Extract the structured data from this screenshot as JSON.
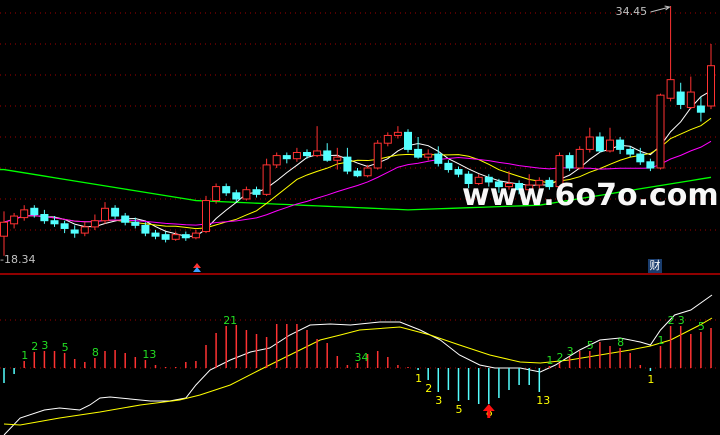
{
  "chart_data": [
    {
      "type": "candlestick",
      "ohlc": [
        [
          19.6,
          21.2,
          18.34,
          20.5
        ],
        [
          20.4,
          21.1,
          20.1,
          20.9
        ],
        [
          20.8,
          21.6,
          20.6,
          21.3
        ],
        [
          21.4,
          21.6,
          20.8,
          21.0
        ],
        [
          21.0,
          21.3,
          20.4,
          20.6
        ],
        [
          20.6,
          20.9,
          20.2,
          20.4
        ],
        [
          20.4,
          20.6,
          19.8,
          20.1
        ],
        [
          20.0,
          20.3,
          19.5,
          19.8
        ],
        [
          19.8,
          20.5,
          19.6,
          20.2
        ],
        [
          20.2,
          21.0,
          20.0,
          20.6
        ],
        [
          20.6,
          21.8,
          20.4,
          21.4
        ],
        [
          21.4,
          21.6,
          20.7,
          20.9
        ],
        [
          20.9,
          21.1,
          20.3,
          20.5
        ],
        [
          20.5,
          20.8,
          20.1,
          20.3
        ],
        [
          20.3,
          20.5,
          19.6,
          19.8
        ],
        [
          19.8,
          20.0,
          19.4,
          19.6
        ],
        [
          19.7,
          19.9,
          19.2,
          19.4
        ],
        [
          19.4,
          19.9,
          19.3,
          19.7
        ],
        [
          19.7,
          19.9,
          19.3,
          19.5
        ],
        [
          19.5,
          20.0,
          19.4,
          19.8
        ],
        [
          19.9,
          22.2,
          19.8,
          21.9
        ],
        [
          21.9,
          23.0,
          21.7,
          22.8
        ],
        [
          22.8,
          23.0,
          22.2,
          22.4
        ],
        [
          22.4,
          22.6,
          21.8,
          22.0
        ],
        [
          22.0,
          22.8,
          21.9,
          22.6
        ],
        [
          22.6,
          22.8,
          22.1,
          22.3
        ],
        [
          22.3,
          24.6,
          22.2,
          24.2
        ],
        [
          24.2,
          25.0,
          24.0,
          24.8
        ],
        [
          24.8,
          25.0,
          24.3,
          24.6
        ],
        [
          24.6,
          25.3,
          24.4,
          25.0
        ],
        [
          25.0,
          25.2,
          24.6,
          24.8
        ],
        [
          24.8,
          26.7,
          24.7,
          25.1
        ],
        [
          25.1,
          25.6,
          24.4,
          24.5
        ],
        [
          24.5,
          25.3,
          23.9,
          24.7
        ],
        [
          24.7,
          25.3,
          23.6,
          23.8
        ],
        [
          23.8,
          24.0,
          23.4,
          23.5
        ],
        [
          23.5,
          24.2,
          23.4,
          24.0
        ],
        [
          24.0,
          25.8,
          23.9,
          25.6
        ],
        [
          25.6,
          26.3,
          25.4,
          26.1
        ],
        [
          26.1,
          26.7,
          25.9,
          26.3
        ],
        [
          26.3,
          26.5,
          25.0,
          25.2
        ],
        [
          25.2,
          26.0,
          24.6,
          24.7
        ],
        [
          24.7,
          25.2,
          24.5,
          24.9
        ],
        [
          24.9,
          25.4,
          24.1,
          24.3
        ],
        [
          24.3,
          24.5,
          23.7,
          23.9
        ],
        [
          23.9,
          24.1,
          23.4,
          23.6
        ],
        [
          23.6,
          23.8,
          22.7,
          23.0
        ],
        [
          23.0,
          23.6,
          22.9,
          23.4
        ],
        [
          23.4,
          23.6,
          22.8,
          23.1
        ],
        [
          23.1,
          23.3,
          22.4,
          22.8
        ],
        [
          22.8,
          23.8,
          22.6,
          23.0
        ],
        [
          23.0,
          23.2,
          22.3,
          22.6
        ],
        [
          22.6,
          23.6,
          22.5,
          22.9
        ],
        [
          22.9,
          23.4,
          22.7,
          23.2
        ],
        [
          23.2,
          23.4,
          22.6,
          22.8
        ],
        [
          22.8,
          25.0,
          22.7,
          24.8
        ],
        [
          24.8,
          25.0,
          23.8,
          24.0
        ],
        [
          24.0,
          25.4,
          23.9,
          25.2
        ],
        [
          25.2,
          26.6,
          25.0,
          26.0
        ],
        [
          26.0,
          26.3,
          25.0,
          25.1
        ],
        [
          25.1,
          26.6,
          25.0,
          25.8
        ],
        [
          25.8,
          26.0,
          24.9,
          25.2
        ],
        [
          25.2,
          25.4,
          24.7,
          24.9
        ],
        [
          24.9,
          25.3,
          24.2,
          24.4
        ],
        [
          24.4,
          24.6,
          23.8,
          24.0
        ],
        [
          24.0,
          28.8,
          23.9,
          28.7
        ],
        [
          28.5,
          34.45,
          28.3,
          29.7
        ],
        [
          28.9,
          29.5,
          27.8,
          28.1
        ],
        [
          27.9,
          29.9,
          27.8,
          28.9
        ],
        [
          28.0,
          28.6,
          27.0,
          27.6
        ],
        [
          28.0,
          32.0,
          27.8,
          30.6
        ]
      ],
      "moving_averages": [
        {
          "period": 5,
          "color": "#ffffff"
        },
        {
          "period": 10,
          "color": "#ffff00"
        },
        {
          "period": 20,
          "color": "#ff00ff"
        }
      ],
      "long_ma": {
        "color": "#00ff00",
        "points": [
          [
            0,
            23.9
          ],
          [
            19,
            21.9
          ],
          [
            40,
            21.3
          ],
          [
            53,
            21.6
          ],
          [
            70,
            23.4
          ]
        ]
      },
      "ylim": [
        18.34,
        34.45
      ],
      "gridlines": [
        34,
        32,
        30,
        28,
        26,
        24,
        22,
        20
      ],
      "high_label": "34.45",
      "low_label": "-18.34",
      "up_color": "#ff3232",
      "down_color": "#54ffff"
    },
    {
      "type": "bar",
      "values": [
        -15,
        -6,
        7,
        16,
        17,
        17,
        15,
        9,
        6,
        10,
        17,
        18,
        15,
        11,
        8,
        3,
        1,
        1,
        6,
        7,
        23,
        35,
        42,
        43,
        38,
        34,
        31,
        44,
        44,
        44,
        38,
        29,
        25,
        12,
        3,
        5,
        14,
        17,
        11,
        3,
        1,
        -2,
        -12,
        -24,
        -22,
        -33,
        -32,
        -36,
        -36,
        -30,
        -22,
        -17,
        -17,
        -24,
        2,
        5,
        11,
        17,
        17,
        26,
        22,
        20,
        15,
        3,
        -3,
        22,
        42,
        42,
        34,
        36,
        40
      ],
      "lines": [
        {
          "color": "#ffffff",
          "points": [
            [
              0,
              -67
            ],
            [
              1.6,
              -50
            ],
            [
              4,
              -42
            ],
            [
              5.5,
              -40
            ],
            [
              7.5,
              -42
            ],
            [
              8.5,
              -37
            ],
            [
              9.5,
              -30
            ],
            [
              10.5,
              -29
            ],
            [
              12.5,
              -31
            ],
            [
              14.5,
              -33
            ],
            [
              16.4,
              -33
            ],
            [
              18,
              -30
            ],
            [
              19,
              -17
            ],
            [
              20.4,
              -2
            ],
            [
              22.4,
              8
            ],
            [
              24.4,
              16
            ],
            [
              26.3,
              20
            ],
            [
              28.3,
              33
            ],
            [
              30.3,
              43
            ],
            [
              32.3,
              44
            ],
            [
              34.3,
              43
            ],
            [
              37.2,
              46
            ],
            [
              39.2,
              46
            ],
            [
              41.2,
              38
            ],
            [
              43.2,
              28
            ],
            [
              45.1,
              13
            ],
            [
              47.1,
              3
            ],
            [
              48.6,
              0
            ],
            [
              51.1,
              0
            ],
            [
              53.1,
              -4
            ],
            [
              54.6,
              3
            ],
            [
              57,
              18
            ],
            [
              59,
              28
            ],
            [
              61,
              30
            ],
            [
              63,
              26
            ],
            [
              64,
              23
            ],
            [
              65,
              38
            ],
            [
              66.4,
              53
            ],
            [
              68,
              58
            ],
            [
              70.1,
              73
            ]
          ]
        },
        {
          "color": "#ffff00",
          "points": [
            [
              0,
              -56
            ],
            [
              1.6,
              -57
            ],
            [
              5.5,
              -50
            ],
            [
              9.5,
              -44
            ],
            [
              13.5,
              -37
            ],
            [
              17.4,
              -32
            ],
            [
              19.4,
              -27
            ],
            [
              22.4,
              -17
            ],
            [
              25.3,
              -2
            ],
            [
              28.3,
              13
            ],
            [
              31.3,
              28
            ],
            [
              33.3,
              33
            ],
            [
              35.2,
              38
            ],
            [
              39.2,
              41
            ],
            [
              42.2,
              33
            ],
            [
              45.1,
              23
            ],
            [
              48.1,
              13
            ],
            [
              51.1,
              6
            ],
            [
              53.1,
              5
            ],
            [
              56,
              8
            ],
            [
              59,
              13
            ],
            [
              62,
              18
            ],
            [
              64,
              22
            ],
            [
              66,
              28
            ],
            [
              68.9,
              43
            ],
            [
              70.1,
              50
            ]
          ]
        }
      ],
      "count_labels": [
        {
          "i": 2,
          "text": "1"
        },
        {
          "i": 3,
          "text": "2"
        },
        {
          "i": 4,
          "text": "3"
        },
        {
          "i": 6,
          "text": "5"
        },
        {
          "i": 9,
          "text": "8"
        },
        {
          "i": 14,
          "text": "13"
        },
        {
          "i": 22,
          "text": "21"
        },
        {
          "i": 35,
          "text": "34"
        },
        {
          "i": 41,
          "text": "1"
        },
        {
          "i": 42,
          "text": "2"
        },
        {
          "i": 43,
          "text": "3"
        },
        {
          "i": 45,
          "text": "5"
        },
        {
          "i": 48,
          "text": "8"
        },
        {
          "i": 53,
          "text": "13"
        },
        {
          "i": 54,
          "text": "1"
        },
        {
          "i": 55,
          "text": "2"
        },
        {
          "i": 56,
          "text": "3"
        },
        {
          "i": 58,
          "text": "5"
        },
        {
          "i": 61,
          "text": "8"
        },
        {
          "i": 64,
          "text": "1"
        },
        {
          "i": 65,
          "text": "1"
        },
        {
          "i": 66,
          "text": "2"
        },
        {
          "i": 67,
          "text": "3"
        },
        {
          "i": 69,
          "text": "5"
        }
      ],
      "signal_arrow_index": 48,
      "up_color": "#ff3232",
      "down_color": "#54ffff",
      "up_label_color": "#22dd22",
      "down_label_color": "#ffff00"
    }
  ],
  "watermark": "www.6o7o.com",
  "finance_badge": "财"
}
